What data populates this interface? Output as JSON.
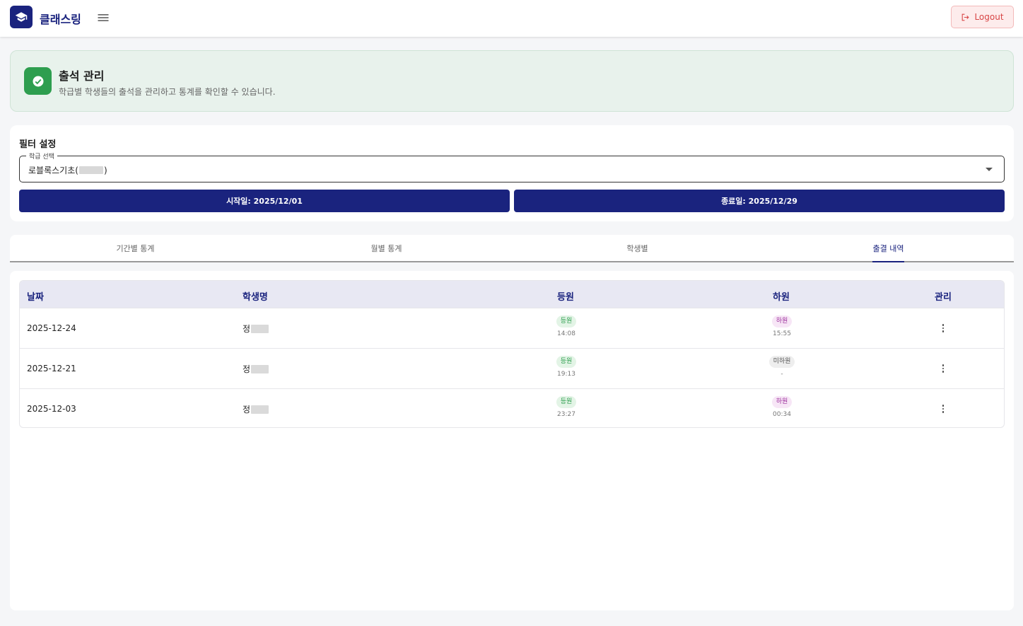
{
  "header": {
    "brand": "클래스링",
    "logout_label": "Logout"
  },
  "banner": {
    "title": "출석 관리",
    "subtitle": "학급별 학생들의 출석을 관리하고 통계를 확인할 수 있습니다."
  },
  "filter": {
    "title": "필터 설정",
    "class_select_label": "학급 선택",
    "class_select_value_prefix": "로블록스기초(",
    "class_select_value_suffix": ")",
    "start_date_label": "시작일: 2025/12/01",
    "end_date_label": "종료일: 2025/12/29"
  },
  "tabs": [
    {
      "label": "기간별 통계",
      "active": false
    },
    {
      "label": "월별 통계",
      "active": false
    },
    {
      "label": "학생별",
      "active": false
    },
    {
      "label": "출결 내역",
      "active": true
    }
  ],
  "table": {
    "headers": {
      "date": "날짜",
      "student": "학생명",
      "checkin": "등원",
      "checkout": "하원",
      "manage": "관리"
    },
    "rows": [
      {
        "date": "2025-12-24",
        "student": "정",
        "checkin_badge": "등원",
        "checkin_time": "14:08",
        "checkout_badge": "하원",
        "checkout_time": "15:55",
        "checkout_status": "out"
      },
      {
        "date": "2025-12-21",
        "student": "정",
        "checkin_badge": "등원",
        "checkin_time": "19:13",
        "checkout_badge": "미하원",
        "checkout_time": "-",
        "checkout_status": "none"
      },
      {
        "date": "2025-12-03",
        "student": "정",
        "checkin_badge": "등원",
        "checkin_time": "23:27",
        "checkout_badge": "하원",
        "checkout_time": "00:34",
        "checkout_status": "out"
      }
    ]
  },
  "colors": {
    "primary": "#1a237e",
    "success": "#2e9e4f",
    "logout": "#d84545"
  },
  "icons": {
    "logo": "graduation-cap-icon",
    "menu": "hamburger-menu-icon",
    "logout": "logout-icon",
    "banner": "check-circle-icon",
    "row_menu": "more-vertical-icon"
  }
}
